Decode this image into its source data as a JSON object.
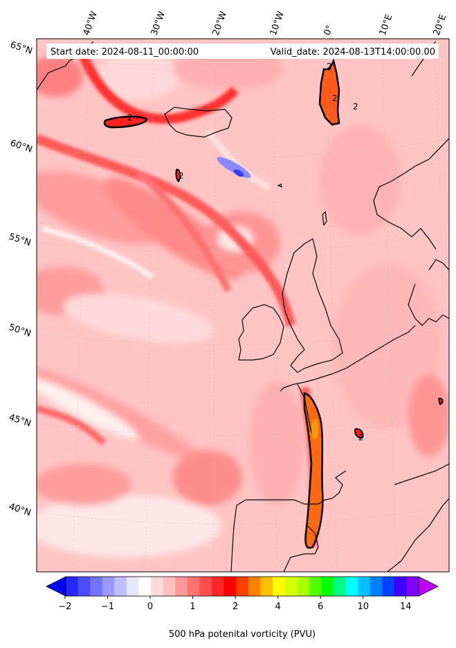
{
  "header": {
    "start_date": "Start date: 2024-08-11_00:00:00",
    "valid_date": "Valid_date: 2024-08-13T14:00:00.00"
  },
  "axes": {
    "lon_labels": [
      "40°W",
      "30°W",
      "20°W",
      "10°W",
      "0°",
      "10°E",
      "20°E"
    ],
    "lat_labels": [
      "65°N",
      "60°N",
      "55°N",
      "50°N",
      "45°N",
      "40°N"
    ]
  },
  "contour_labels": [
    "2",
    "2",
    "2",
    "2",
    "2",
    "2"
  ],
  "colorbar": {
    "title": "500 hPa potenital vorticity (PVU)",
    "tick_labels": [
      "−2",
      "−1",
      "0",
      "1",
      "2",
      "4",
      "6",
      "10",
      "14"
    ],
    "colors": [
      "#0000ff",
      "#2626ff",
      "#4c4cff",
      "#7373ff",
      "#9999ff",
      "#bfbfff",
      "#e6e6ff",
      "#ffffff",
      "#ffd9d9",
      "#ffbfbf",
      "#ff9999",
      "#ff7373",
      "#ff4c4c",
      "#ff2626",
      "#ff0000",
      "#ff4000",
      "#ff8000",
      "#ffbf00",
      "#ffff00",
      "#d4ff00",
      "#aaff00",
      "#55ff00",
      "#00ff00",
      "#00ff80",
      "#00ffff",
      "#00c0ff",
      "#0080ff",
      "#0040ff",
      "#4000ff",
      "#8000ff",
      "#c000ff"
    ]
  }
}
